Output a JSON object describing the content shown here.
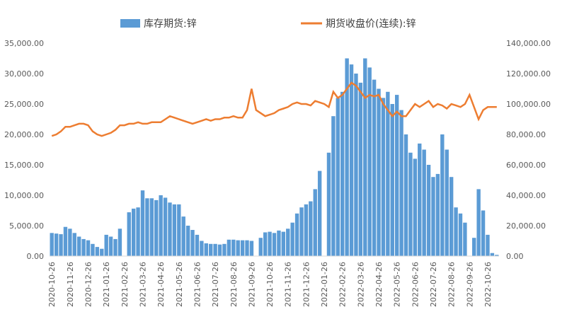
{
  "chart_data": {
    "type": "bar-line",
    "categories": [
      "2020-10-26",
      null,
      null,
      null,
      "2020-11-26",
      null,
      null,
      null,
      "2020-12-26",
      null,
      null,
      null,
      "2021-01-26",
      null,
      null,
      null,
      "2021-02-26",
      null,
      null,
      null,
      "2021-03-26",
      null,
      null,
      null,
      "2021-04-26",
      null,
      null,
      null,
      "2021-05-26",
      null,
      null,
      null,
      "2021-06-26",
      null,
      null,
      null,
      "2021-07-26",
      null,
      null,
      null,
      "2021-08-26",
      null,
      null,
      null,
      "2021-09-26",
      null,
      null,
      null,
      "2021-10-26",
      null,
      null,
      null,
      "2021-11-26",
      null,
      null,
      null,
      "2021-12-26",
      null,
      null,
      null,
      "2022-01-26",
      null,
      null,
      null,
      "2022-02-26",
      null,
      null,
      null,
      "2022-03-26",
      null,
      null,
      null,
      "2022-04-26",
      null,
      null,
      null,
      "2022-05-26",
      null,
      null,
      null,
      "2022-06-26",
      null,
      null,
      null,
      "2022-07-26",
      null,
      null,
      null,
      "2022-08-26",
      null,
      null,
      null,
      "2022-09-26",
      null,
      null,
      null,
      "2022-10-26",
      null,
      null
    ],
    "series": [
      {
        "name": "库存期货:锌",
        "color": "#5b9bd5",
        "values": [
          3800,
          3700,
          3600,
          4800,
          4500,
          3800,
          3200,
          2800,
          2600,
          2000,
          1500,
          1200,
          3500,
          3200,
          2800,
          4500,
          0,
          7200,
          7800,
          8000,
          10800,
          9500,
          9500,
          9200,
          10000,
          9600,
          8800,
          8500,
          8500,
          6500,
          5000,
          4300,
          3500,
          2500,
          2100,
          2000,
          2000,
          1900,
          2000,
          2700,
          2700,
          2600,
          2600,
          2600,
          2500,
          0,
          3000,
          3900,
          4000,
          3800,
          4200,
          4000,
          4500,
          5500,
          7000,
          8000,
          8500,
          9000,
          11000,
          14000,
          0,
          17000,
          23000,
          26000,
          27000,
          32500,
          31500,
          30000,
          28500,
          32500,
          31000,
          29000,
          27500,
          26000,
          27000,
          25000,
          26500,
          24000,
          20000,
          17000,
          16000,
          18500,
          17500,
          15000,
          13000,
          13500,
          20000,
          17500,
          13000,
          8000,
          7000,
          5500,
          0,
          3000,
          11000,
          7500,
          3500,
          500,
          200
        ]
      },
      {
        "name": "期货收盘价(连续):锌",
        "color": "#ed7d31",
        "axis": "y2",
        "values": [
          79000,
          80000,
          82000,
          85000,
          85000,
          86000,
          87000,
          87000,
          86000,
          82000,
          80000,
          79000,
          80000,
          81000,
          83000,
          86000,
          86000,
          87000,
          87000,
          88000,
          87000,
          87000,
          88000,
          88000,
          88000,
          90000,
          92000,
          91000,
          90000,
          89000,
          88000,
          87000,
          88000,
          89000,
          90000,
          89000,
          90000,
          90000,
          91000,
          91000,
          92000,
          91000,
          91000,
          96000,
          110000,
          96000,
          94000,
          92000,
          93000,
          94000,
          96000,
          97000,
          98000,
          100000,
          101000,
          100000,
          100000,
          99000,
          102000,
          101000,
          100000,
          98000,
          108000,
          104000,
          106000,
          110000,
          114000,
          112000,
          108000,
          104000,
          106000,
          105000,
          106000,
          100000,
          96000,
          92000,
          95000,
          92000,
          92000,
          96000,
          100000,
          98000,
          100000,
          102000,
          98000,
          100000,
          99000,
          97000,
          100000,
          99000,
          98000,
          100000,
          106000,
          98000,
          90000,
          96000,
          98000,
          98000,
          98000
        ]
      }
    ],
    "ylim": [
      0,
      35000
    ],
    "yticks": [
      {
        "value": 0,
        "label": "0.00"
      },
      {
        "value": 5000,
        "label": "5,000.00"
      },
      {
        "value": 10000,
        "label": "10,000.00"
      },
      {
        "value": 15000,
        "label": "15,000.00"
      },
      {
        "value": 20000,
        "label": "20,000.00"
      },
      {
        "value": 25000,
        "label": "25,000.00"
      },
      {
        "value": 30000,
        "label": "30,000.00"
      },
      {
        "value": 35000,
        "label": "35,000.00"
      }
    ],
    "y2lim": [
      0,
      140000
    ],
    "y2ticks": [
      {
        "value": 0,
        "label": "0.00"
      },
      {
        "value": 20000,
        "label": "20,000.00"
      },
      {
        "value": 40000,
        "label": "40,000.00"
      },
      {
        "value": 60000,
        "label": "60,000.00"
      },
      {
        "value": 80000,
        "label": "80,000.00"
      },
      {
        "value": 100000,
        "label": "100,000.00"
      },
      {
        "value": 120000,
        "label": "120,000.00"
      },
      {
        "value": 140000,
        "label": "140,000.00"
      }
    ]
  }
}
